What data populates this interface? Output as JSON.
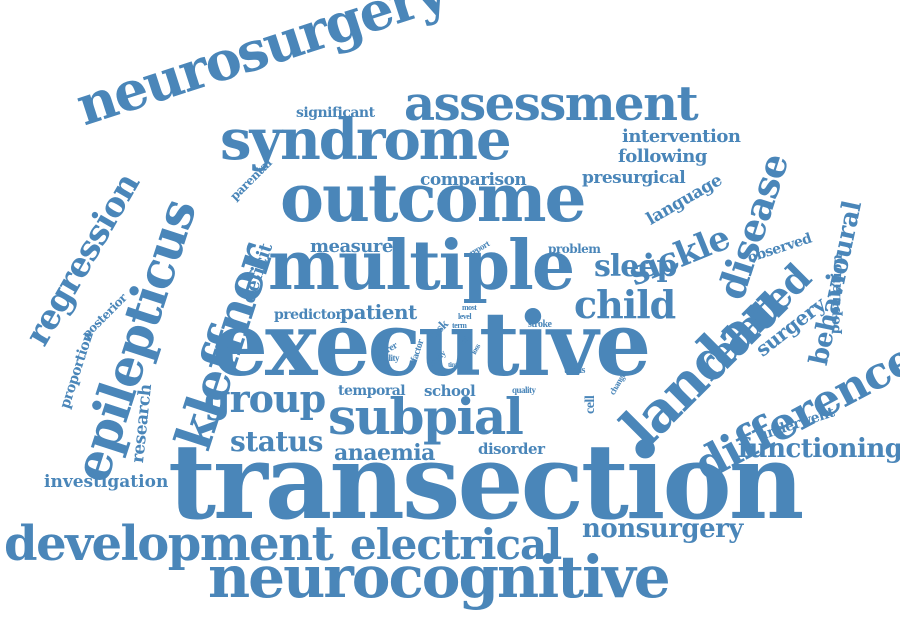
{
  "accent_color": "#4a86b9",
  "words": {
    "transection": "transection",
    "executive": "executive",
    "neurocognitive": "neurocognitive",
    "multiple": "multiple",
    "outcome": "outcome",
    "syndrome": "syndrome",
    "neurosurgery": "neurosurgery",
    "assessment": "assessment",
    "development": "development",
    "electrical": "electrical",
    "subpial": "subpial",
    "landau": "landau",
    "difference": "difference",
    "epilepticus": "epilepticus",
    "kleffner": "kleffner",
    "regression": "regression",
    "group": "group",
    "child": "child",
    "disease": "disease",
    "related": "related",
    "sickle": "sickle",
    "sleep": "sleep",
    "status": "status",
    "functioning": "functioning",
    "nonsurgery": "nonsurgery",
    "behavioural": "behavioural",
    "anaemia": "anaemia",
    "investigation": "investigation",
    "surgery": "surgery",
    "patient": "patient",
    "measure": "measure",
    "comparison": "comparison",
    "intervention": "intervention",
    "following": "following",
    "presurgical": "presurgical",
    "language": "language",
    "significant": "significant",
    "parental": "parental",
    "deficit": "deficit",
    "predictor": "predictor",
    "temporal": "temporal",
    "school": "school",
    "research": "research",
    "proportion": "proportion",
    "posterior": "posterior",
    "disorder": "disorder",
    "population": "population",
    "observed": "observed",
    "underwent": "underwent",
    "problem": "problem",
    "report": "report",
    "task": "task",
    "stroke": "stroke",
    "thesis": "thesis",
    "quality": "quality",
    "cell": "cell",
    "change": "change",
    "ability": "ability",
    "poorer": "poorer",
    "factor": "factor",
    "study": "study",
    "most": "most",
    "level": "level",
    "term": "term",
    "time": "time",
    "risk": "risk",
    "loss": "loss"
  }
}
